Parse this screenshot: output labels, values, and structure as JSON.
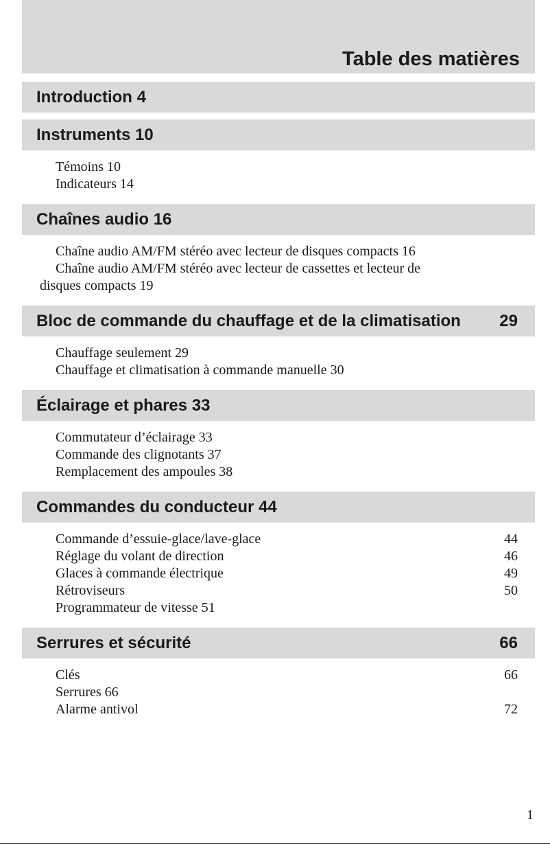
{
  "header": {
    "title": "Table des matières"
  },
  "sections": [
    {
      "title": "Introduction 4",
      "entries": []
    },
    {
      "title": "Instruments 10",
      "entries": [
        {
          "text": "Témoins 10"
        },
        {
          "text": "Indicateurs 14"
        }
      ]
    },
    {
      "title": "Chaînes audio 16",
      "entries": [
        {
          "text": "Chaîne audio AM/FM stéréo avec lecteur de disques compacts 16"
        },
        {
          "text": "Chaîne audio AM/FM stéréo avec lecteur de cassettes et lecteur de disques compacts 19"
        }
      ]
    },
    {
      "title": "Bloc de commande du chauffage et de la climatisation",
      "page": "29",
      "entries": [
        {
          "text": "Chauffage seulement 29"
        },
        {
          "text": "Chauffage et climatisation à commande manuelle 30"
        }
      ]
    },
    {
      "title": "Éclairage et phares 33",
      "entries": [
        {
          "text": "Commutateur d’éclairage 33"
        },
        {
          "text": "Commande des clignotants 37"
        },
        {
          "text": "Remplacement des ampoules 38"
        }
      ]
    },
    {
      "title": "Commandes du conducteur 44",
      "entries": [
        {
          "text": "Commande d’essuie-glace/lave-glace",
          "page": "44"
        },
        {
          "text": "Réglage du volant de direction",
          "page": "46"
        },
        {
          "text": "Glaces à commande électrique",
          "page": "49"
        },
        {
          "text": "Rétroviseurs",
          "page": "50"
        },
        {
          "text": "Programmateur de vitesse 51"
        }
      ]
    },
    {
      "title": "Serrures et sécurité",
      "page": "66",
      "entries": [
        {
          "text": "Clés",
          "page": "66"
        },
        {
          "text": "Serrures 66"
        },
        {
          "text": "Alarme antivol",
          "page": "72"
        }
      ]
    }
  ],
  "footer": {
    "page_number": "1"
  }
}
